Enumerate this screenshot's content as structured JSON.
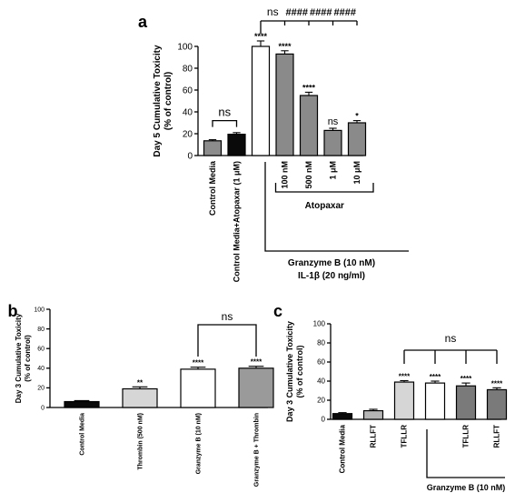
{
  "chart_data": [
    {
      "panel": "a",
      "type": "bar",
      "ylabel": "Day 5 Cumulative Toxicity",
      "ylabel2": "(% of control)",
      "ylim": [
        0,
        100
      ],
      "yticks": [
        0,
        20,
        40,
        60,
        80,
        100
      ],
      "categories": [
        "Control Media",
        "Control Media+Atopaxar (1 μM)",
        "",
        "100 nM",
        "500 nM",
        "1 μM",
        "10 μM"
      ],
      "values": [
        13.5,
        19.5,
        100,
        93,
        55,
        23,
        30
      ],
      "errors": [
        1,
        1.5,
        5,
        3,
        3,
        2,
        2
      ],
      "fills": [
        "#8c8c8c",
        "#0a0a0a",
        "#ffffff",
        "#8a8a8a",
        "#8a8a8a",
        "#8a8a8a",
        "#8a8a8a"
      ],
      "stars": [
        "",
        "",
        "****",
        "****",
        "****",
        "ns",
        "*"
      ],
      "annotations": {
        "pair_ns": "ns",
        "top": [
          "ns",
          "####",
          "####",
          "####"
        ],
        "group_label": "Atopaxar",
        "treatment_1": "Granzyme B (10 nM)",
        "treatment_2": "IL-1β (20 ng/ml)"
      }
    },
    {
      "panel": "b",
      "type": "bar",
      "ylabel": "Day 3 Cumulative Toxicity",
      "ylabel2": "(% of control)",
      "ylim": [
        0,
        100
      ],
      "yticks": [
        0,
        20,
        40,
        60,
        80,
        100
      ],
      "categories": [
        "Control Media",
        "Thrombin (500 nM)",
        "Granzyme B (10 nM)",
        "Granzyme B + Thrombin"
      ],
      "values": [
        6,
        19,
        39,
        40
      ],
      "errors": [
        1,
        2,
        2,
        2
      ],
      "fills": [
        "#0a0a0a",
        "#d6d6d6",
        "#ffffff",
        "#9a9a9a"
      ],
      "stars": [
        "",
        "**",
        "****",
        "****"
      ],
      "annotations": {
        "bracket_ns": "ns"
      }
    },
    {
      "panel": "c",
      "type": "bar",
      "ylabel": "Day 3 Cumulative Toxicity",
      "ylabel2": "(% of control)",
      "ylim": [
        0,
        100
      ],
      "yticks": [
        0,
        20,
        40,
        60,
        80,
        100
      ],
      "categories": [
        "Control Media",
        "RLLFT",
        "TFLLR",
        "",
        "TFLLR",
        "RLLFT"
      ],
      "values": [
        6,
        9,
        39,
        38,
        35,
        31
      ],
      "errors": [
        1,
        1.5,
        1.5,
        2,
        3,
        2
      ],
      "fills": [
        "#0a0a0a",
        "#b5b5b5",
        "#d6d6d6",
        "#ffffff",
        "#7a7a7a",
        "#7a7a7a"
      ],
      "stars": [
        "",
        "",
        "****",
        "****",
        "****",
        "****"
      ],
      "annotations": {
        "bracket_ns": "ns",
        "treatment_1": "Granzyme B (10 nM)"
      }
    }
  ]
}
